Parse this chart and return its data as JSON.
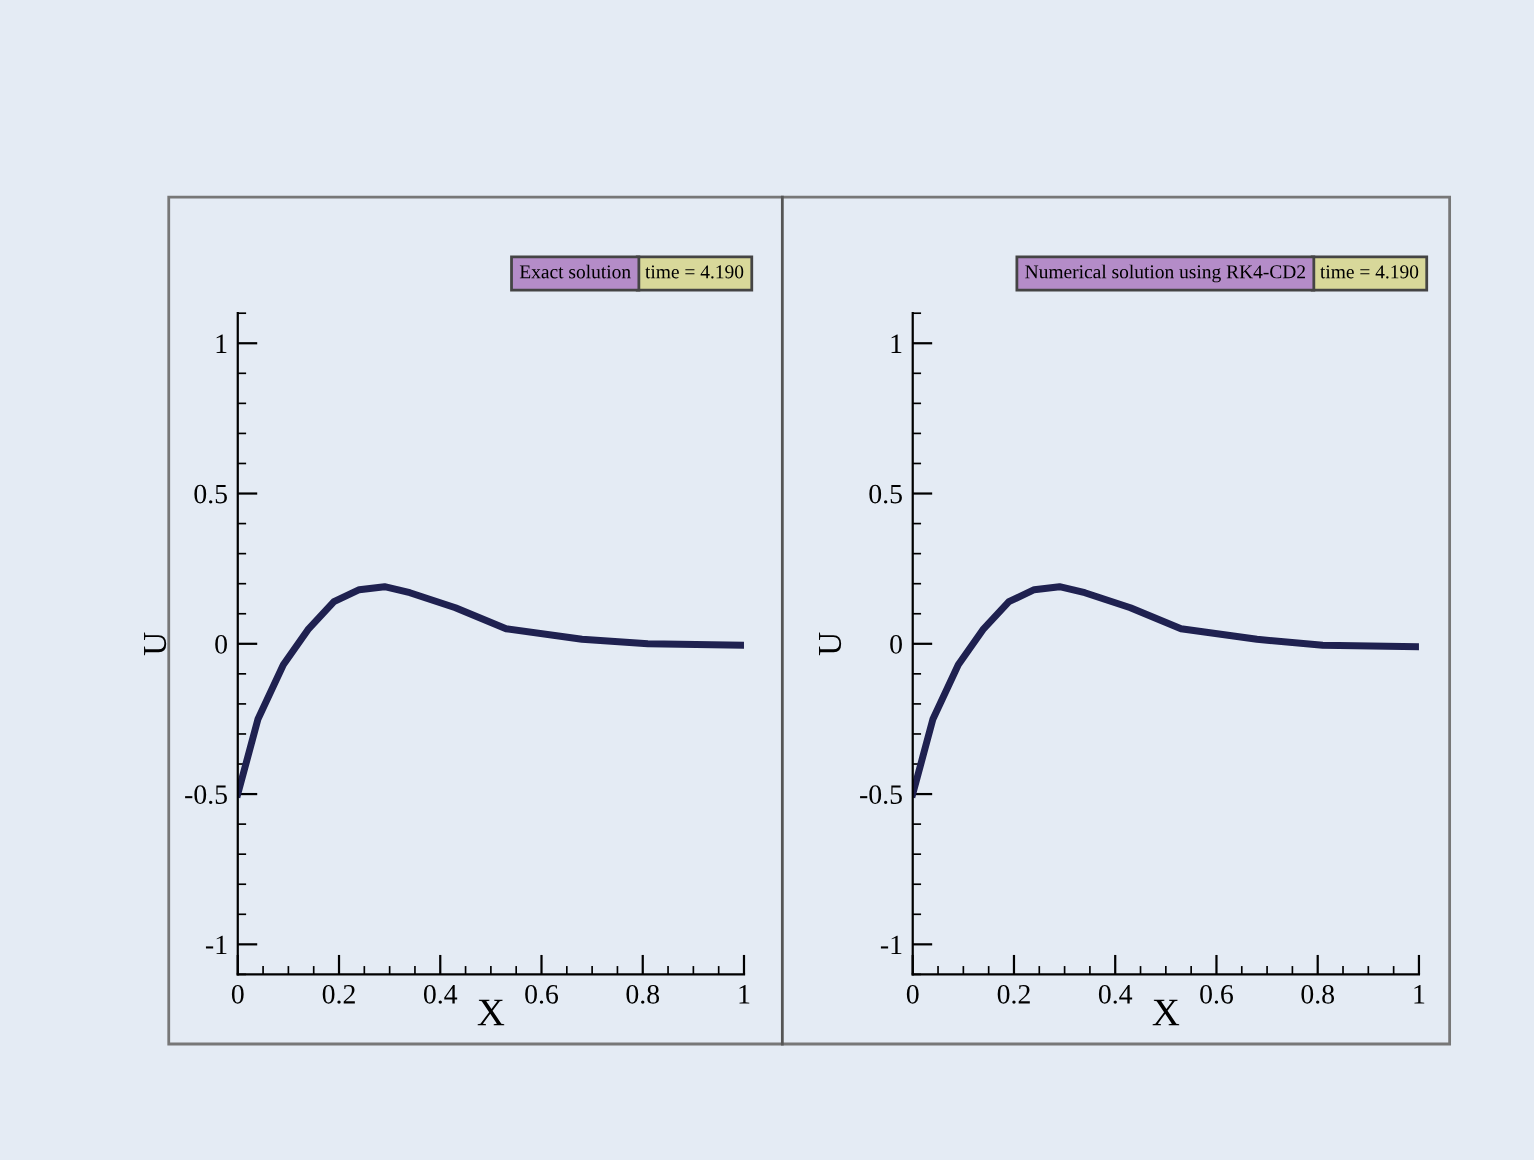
{
  "chart_data": [
    {
      "type": "line",
      "annotations": [
        "Exact solution",
        "time = 4.190"
      ],
      "xlabel": "X",
      "ylabel": "U",
      "xlim": [
        0,
        1
      ],
      "ylim": [
        -1.1,
        1.1
      ],
      "xticks": [
        0,
        0.2,
        0.4,
        0.6,
        0.8,
        1
      ],
      "yticks": [
        -1,
        -0.5,
        0,
        0.5,
        1
      ],
      "grid": false,
      "legend": false,
      "series": [
        {
          "color": "#1f2150",
          "x": [
            0,
            0.04,
            0.09,
            0.14,
            0.19,
            0.24,
            0.29,
            0.34,
            0.43,
            0.53,
            0.68,
            0.81,
            1
          ],
          "values": [
            -0.5,
            -0.25,
            -0.07,
            0.05,
            0.14,
            0.18,
            0.19,
            0.17,
            0.12,
            0.05,
            0.015,
            0,
            -0.005
          ]
        }
      ]
    },
    {
      "type": "line",
      "annotations": [
        "Numerical solution using RK4-CD2",
        "time = 4.190"
      ],
      "xlabel": "X",
      "ylabel": "U",
      "xlim": [
        0,
        1
      ],
      "ylim": [
        -1.1,
        1.1
      ],
      "xticks": [
        0,
        0.2,
        0.4,
        0.6,
        0.8,
        1
      ],
      "yticks": [
        -1,
        -0.5,
        0,
        0.5,
        1
      ],
      "grid": false,
      "legend": false,
      "series": [
        {
          "color": "#1f2150",
          "x": [
            0,
            0.04,
            0.09,
            0.14,
            0.19,
            0.24,
            0.29,
            0.34,
            0.43,
            0.53,
            0.68,
            0.81,
            1
          ],
          "values": [
            -0.5,
            -0.25,
            -0.07,
            0.05,
            0.14,
            0.18,
            0.19,
            0.17,
            0.12,
            0.05,
            0.015,
            -0.005,
            -0.01
          ]
        }
      ]
    }
  ]
}
